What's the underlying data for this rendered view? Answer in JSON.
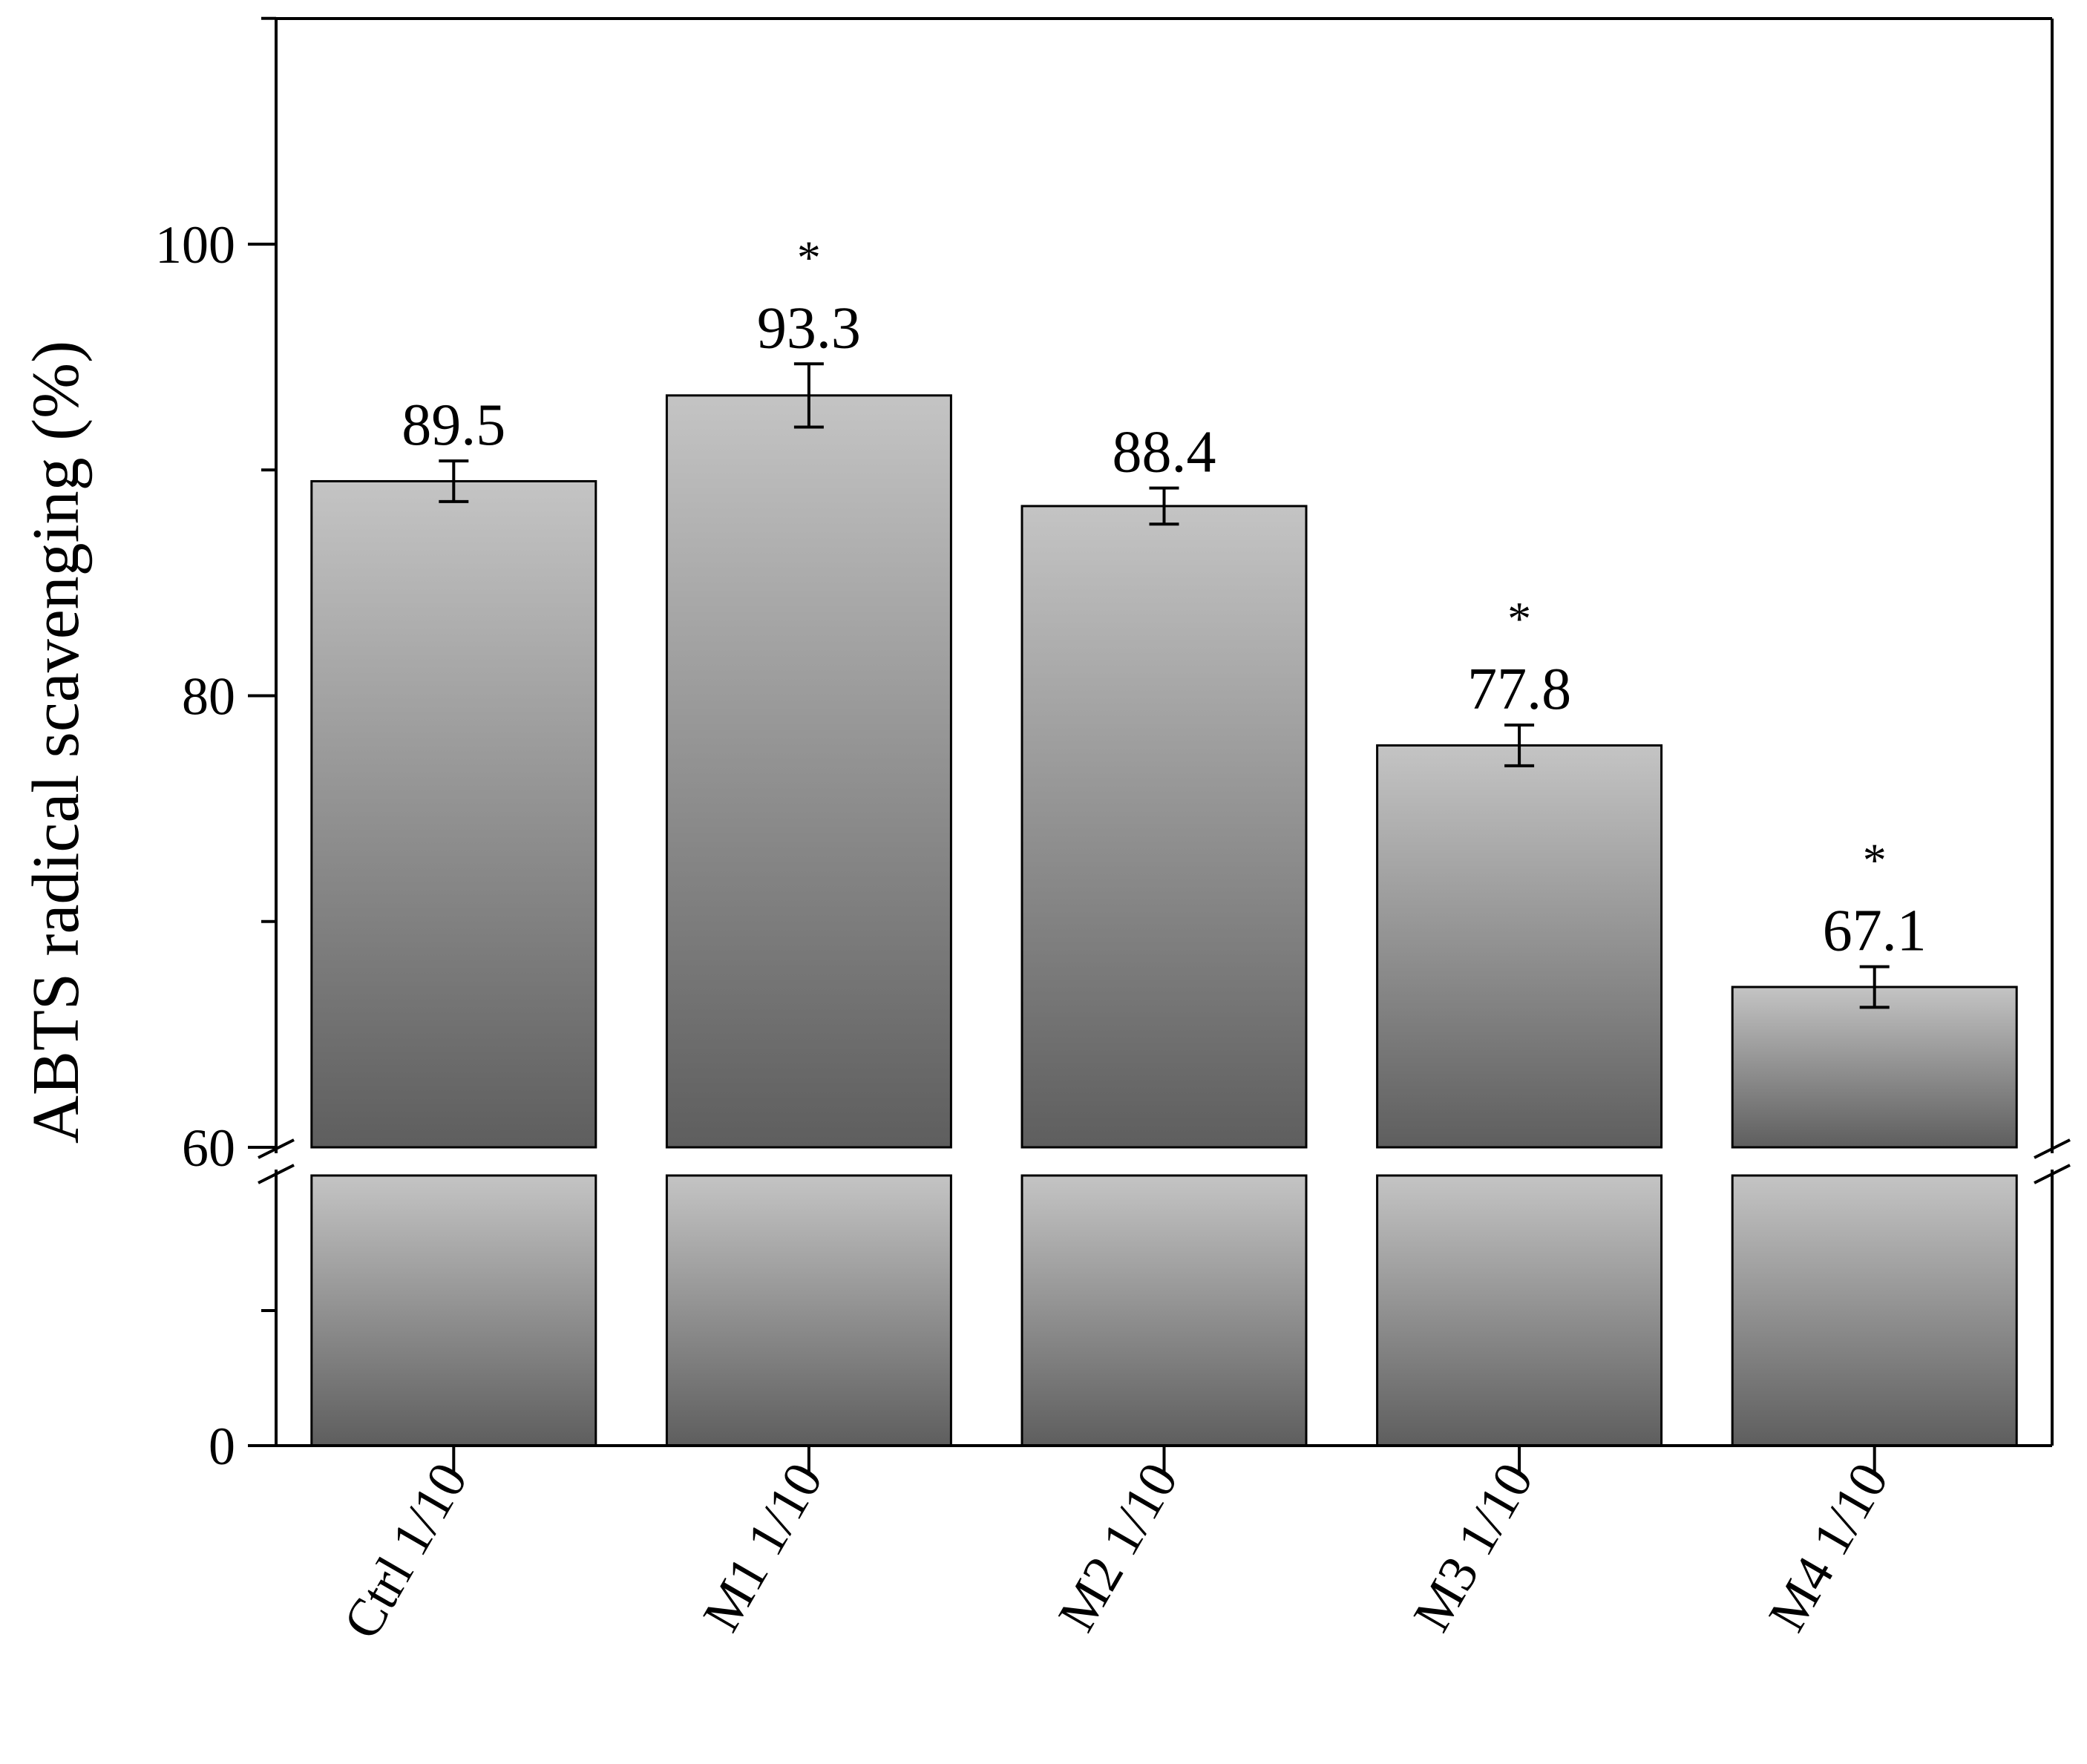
{
  "chart_data": {
    "type": "bar",
    "title": "",
    "xlabel": "",
    "ylabel": "ABTS radical scavenging (%)",
    "categories": [
      "Ctrl 1/10",
      "M1 1/10",
      "M2 1/10",
      "M3 1/10",
      "M4 1/10"
    ],
    "values": [
      89.5,
      93.3,
      88.4,
      77.8,
      67.1
    ],
    "errors": [
      0.9,
      1.4,
      0.8,
      0.9,
      0.9
    ],
    "value_labels": [
      "89.5",
      "93.3",
      "88.4",
      "77.8",
      "67.1"
    ],
    "significance": [
      "",
      "*",
      "",
      "*",
      "*"
    ],
    "y_axis": {
      "broken": true,
      "lower_segment_range": [
        0,
        60
      ],
      "upper_segment_range": [
        60,
        113
      ],
      "tick_labels": [
        "0",
        "60",
        "80",
        "100"
      ],
      "major_ticks": [
        0,
        60,
        80,
        100
      ],
      "minor_ticks": [
        30,
        70,
        90,
        110
      ]
    },
    "grid": false,
    "legend": "none",
    "bar_gradient_top": "#c4c4c4",
    "bar_gradient_bottom": "#5e5e5e"
  }
}
